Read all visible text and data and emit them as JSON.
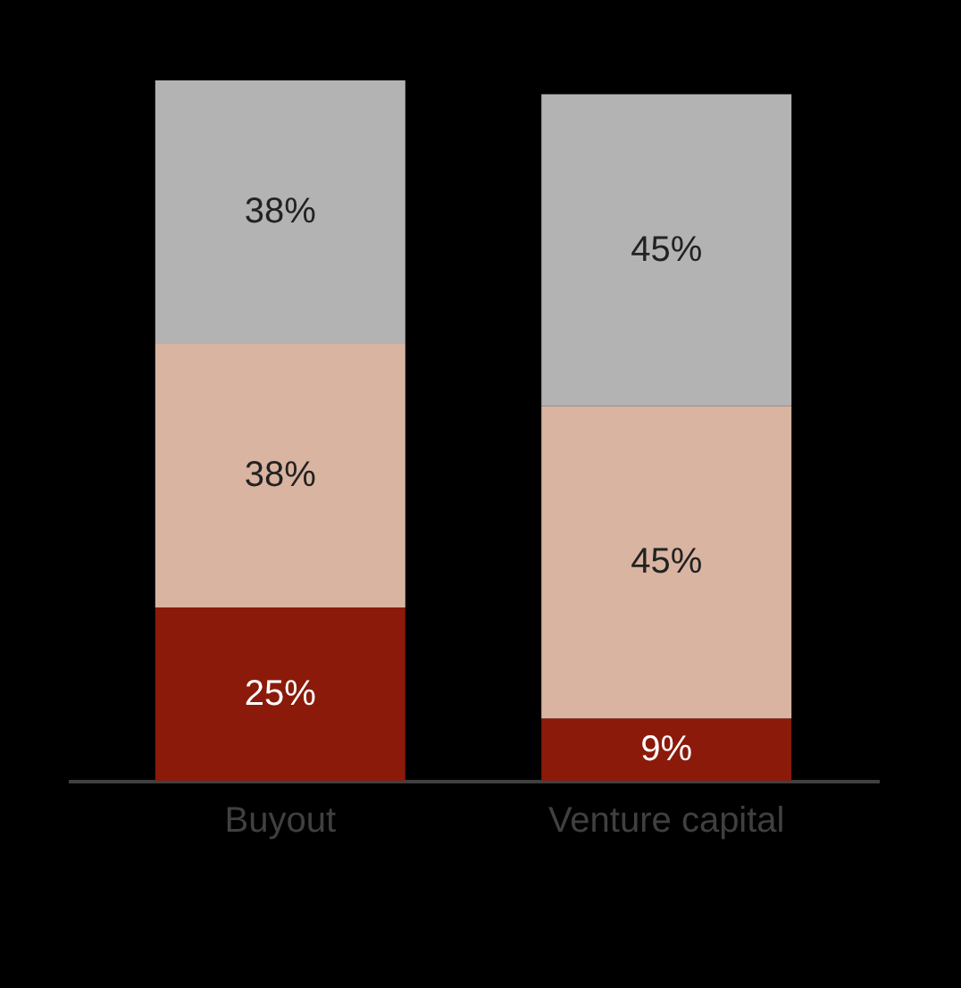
{
  "chart_data": {
    "type": "bar",
    "stacked": true,
    "grid": false,
    "categories": [
      "Buyout",
      "Venture capital"
    ],
    "series": [
      {
        "color": "#8b1a0a",
        "values": [
          25,
          9
        ],
        "value_labels": [
          "25%",
          "9%"
        ]
      },
      {
        "color": "#d9b4a1",
        "values": [
          38,
          45
        ],
        "value_labels": [
          "38%",
          "45%"
        ]
      },
      {
        "color": "#b3b3b3",
        "values": [
          38,
          45
        ],
        "value_labels": [
          "38%",
          "45%"
        ]
      }
    ]
  }
}
